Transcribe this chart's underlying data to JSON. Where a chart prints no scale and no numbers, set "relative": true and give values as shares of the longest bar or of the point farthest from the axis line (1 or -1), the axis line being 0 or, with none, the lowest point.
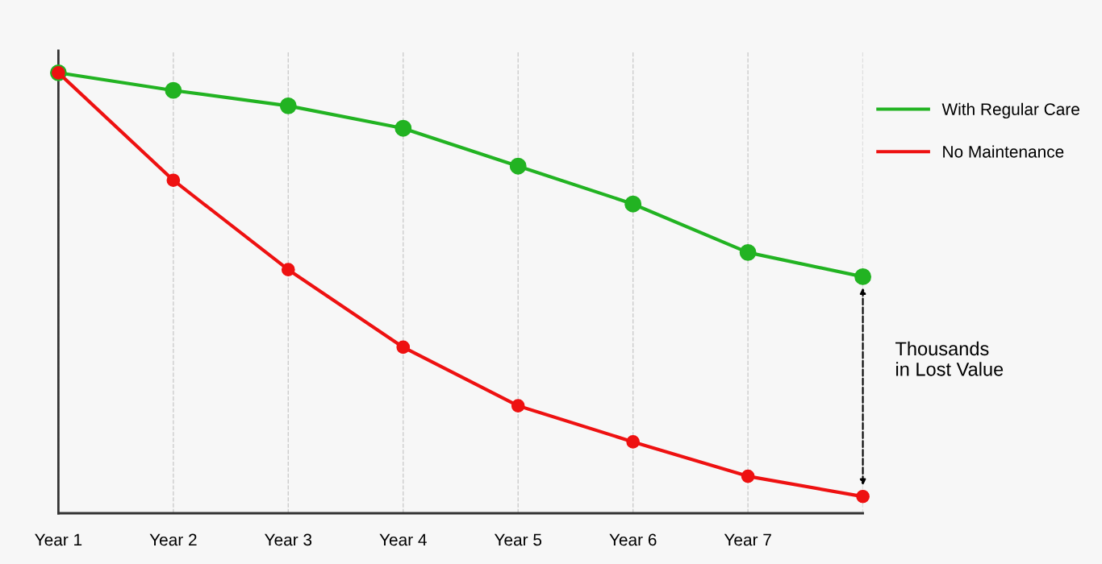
{
  "chart_data": {
    "type": "line",
    "relative": true,
    "categories": [
      "Year 1",
      "Year 2",
      "Year 3",
      "Year 4",
      "Year 5",
      "Year 6",
      "Year 7",
      null
    ],
    "series": [
      {
        "name": "With Regular Care",
        "color": "#22b322",
        "values": [
          1.0,
          0.96,
          0.925,
          0.874,
          0.788,
          0.702,
          0.592,
          0.537
        ]
      },
      {
        "name": "No Maintenance",
        "color": "#ee1111",
        "values": [
          1.0,
          0.756,
          0.553,
          0.377,
          0.244,
          0.162,
          0.084,
          0.038
        ]
      }
    ],
    "annotations": [
      "Thousands\nin Lost Value"
    ],
    "grid": "x",
    "legend": "top right",
    "marker": "circle",
    "line_style": "solid"
  }
}
